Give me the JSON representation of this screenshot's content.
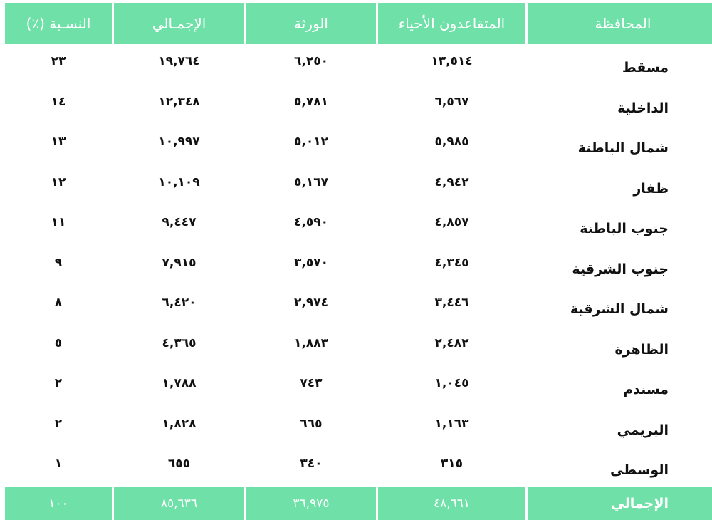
{
  "table": {
    "header": [
      "المحافظة",
      "المتقاعدون الأحياء",
      "الورثة",
      "الإجمـالي",
      "النسـبة (٪)"
    ],
    "rows": [
      [
        "مسقط",
        "١٣,٥١٤",
        "٦,٢٥٠",
        "١٩,٧٦٤",
        "٢٣"
      ],
      [
        "الداخلية",
        "٦,٥٦٧",
        "٥,٧٨١",
        "١٢,٣٤٨",
        "١٤"
      ],
      [
        "شمال الباطنة",
        "٥,٩٨٥",
        "٥,٠١٢",
        "١٠,٩٩٧",
        "١٣"
      ],
      [
        "ظفار",
        "٤,٩٤٢",
        "٥,١٦٧",
        "١٠,١٠٩",
        "١٢"
      ],
      [
        "جنوب الباطنة",
        "٤,٨٥٧",
        "٤,٥٩٠",
        "٩,٤٤٧",
        "١١"
      ],
      [
        "جنوب الشرقية",
        "٤,٣٤٥",
        "٣,٥٧٠",
        "٧,٩١٥",
        "٩"
      ],
      [
        "شمال الشرقية",
        "٣,٤٤٦",
        "٢,٩٧٤",
        "٦,٤٢٠",
        "٨"
      ],
      [
        "الظاهرة",
        "٢,٤٨٢",
        "١,٨٨٣",
        "٤,٣٦٥",
        "٥"
      ],
      [
        "مسندم",
        "١,٠٤٥",
        "٧٤٣",
        "١,٧٨٨",
        "٢"
      ],
      [
        "البريمي",
        "١,١٦٣",
        "٦٦٥",
        "١,٨٢٨",
        "٢"
      ],
      [
        "الوسطى",
        "٣١٥",
        "٣٤٠",
        "٦٥٥",
        "١"
      ]
    ],
    "total": [
      "الإجمالي",
      "٤٨,٦٦١",
      "٣٦,٩٧٥",
      "٨٥,٦٣٦",
      "١٠٠"
    ]
  }
}
